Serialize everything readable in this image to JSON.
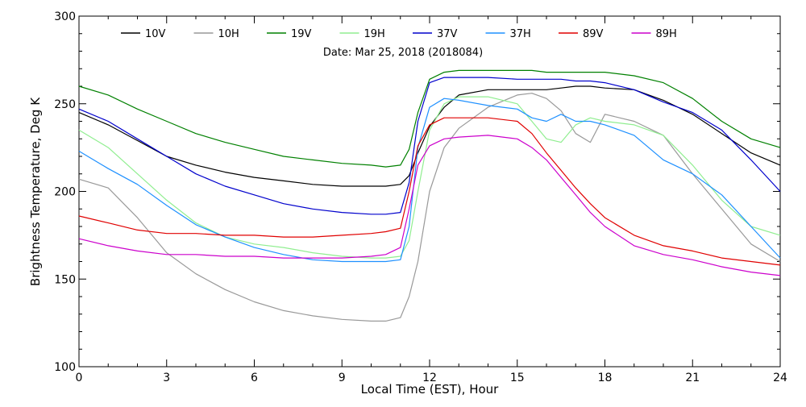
{
  "chart_data": {
    "type": "line",
    "title": "",
    "subtitle": "Date: Mar 25, 2018 (2018084)",
    "xlabel": "Local Time (EST), Hour",
    "ylabel": "Brightness Temperature, Deg K",
    "xlim": [
      0,
      24
    ],
    "ylim": [
      100,
      300
    ],
    "xticks": [
      0,
      3,
      6,
      9,
      12,
      15,
      18,
      21,
      24
    ],
    "yticks": [
      100,
      150,
      200,
      250,
      300
    ],
    "grid": false,
    "legend_position": "top",
    "x": [
      0,
      1,
      2,
      3,
      4,
      5,
      6,
      7,
      8,
      9,
      10,
      10.5,
      11,
      11.3,
      11.6,
      12,
      12.5,
      13,
      14,
      15,
      15.5,
      16,
      16.5,
      17,
      17.5,
      18,
      19,
      20,
      21,
      22,
      23,
      24
    ],
    "series": [
      {
        "name": "10V",
        "color": "#000000",
        "values": [
          245,
          238,
          229,
          220,
          215,
          211,
          208,
          206,
          204,
          203,
          203,
          203,
          204,
          209,
          222,
          237,
          248,
          255,
          258,
          258,
          258,
          258,
          259,
          260,
          260,
          259,
          258,
          252,
          244,
          233,
          222,
          215
        ]
      },
      {
        "name": "10H",
        "color": "#999999",
        "values": [
          207,
          202,
          185,
          165,
          153,
          144,
          137,
          132,
          129,
          127,
          126,
          126,
          128,
          140,
          160,
          200,
          225,
          236,
          248,
          255,
          256,
          253,
          246,
          233,
          228,
          244,
          240,
          232,
          210,
          190,
          170,
          160
        ]
      },
      {
        "name": "19V",
        "color": "#008000",
        "values": [
          260,
          255,
          247,
          240,
          233,
          228,
          224,
          220,
          218,
          216,
          215,
          214,
          215,
          224,
          245,
          264,
          268,
          269,
          269,
          269,
          269,
          268,
          268,
          268,
          268,
          268,
          266,
          262,
          253,
          240,
          230,
          225
        ]
      },
      {
        "name": "19H",
        "color": "#90EE90",
        "values": [
          235,
          225,
          210,
          195,
          182,
          174,
          170,
          168,
          165,
          163,
          162,
          162,
          163,
          172,
          200,
          235,
          250,
          254,
          254,
          250,
          240,
          230,
          228,
          238,
          242,
          240,
          238,
          232,
          215,
          195,
          180,
          175
        ]
      },
      {
        "name": "37V",
        "color": "#0000CC",
        "values": [
          247,
          240,
          230,
          220,
          210,
          203,
          198,
          193,
          190,
          188,
          187,
          187,
          188,
          205,
          240,
          262,
          265,
          265,
          265,
          264,
          264,
          264,
          264,
          263,
          263,
          262,
          258,
          251,
          245,
          235,
          218,
          200
        ]
      },
      {
        "name": "37H",
        "color": "#1E90FF",
        "values": [
          223,
          213,
          204,
          192,
          181,
          174,
          168,
          164,
          161,
          160,
          160,
          160,
          161,
          180,
          225,
          248,
          253,
          252,
          249,
          247,
          242,
          240,
          244,
          240,
          240,
          238,
          232,
          218,
          210,
          198,
          180,
          162
        ]
      },
      {
        "name": "89V",
        "color": "#E00000",
        "values": [
          186,
          182,
          178,
          176,
          176,
          175,
          175,
          174,
          174,
          175,
          176,
          177,
          179,
          200,
          226,
          238,
          242,
          242,
          242,
          240,
          233,
          222,
          212,
          202,
          193,
          185,
          175,
          169,
          166,
          162,
          160,
          158
        ]
      },
      {
        "name": "89H",
        "color": "#CC00CC",
        "values": [
          173,
          169,
          166,
          164,
          164,
          163,
          163,
          162,
          162,
          162,
          163,
          164,
          168,
          190,
          215,
          226,
          230,
          231,
          232,
          230,
          225,
          218,
          208,
          198,
          188,
          180,
          169,
          164,
          161,
          157,
          154,
          152
        ]
      }
    ]
  }
}
